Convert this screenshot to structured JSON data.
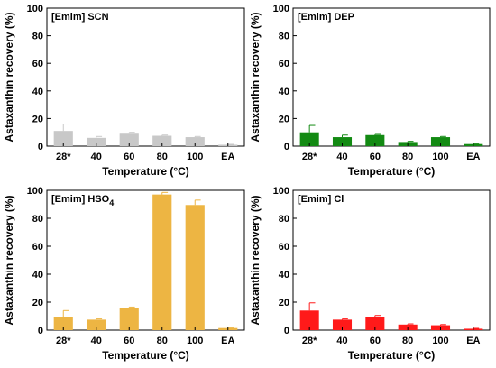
{
  "chart_data": [
    {
      "type": "bar",
      "panel_label": "[Emim] SCN",
      "panel_label_sub": "",
      "xlabel": "Temperature (°C)",
      "ylabel": "Astaxanthin recovery (%)",
      "categories": [
        "28*",
        "40",
        "60",
        "80",
        "100",
        "EA"
      ],
      "values": [
        11,
        6,
        9,
        7.5,
        6.5,
        1
      ],
      "errors": [
        5,
        1,
        1,
        0.5,
        0.5,
        0.3
      ],
      "ylim": [
        0,
        100
      ],
      "yticks": [
        0,
        20,
        40,
        60,
        80,
        100
      ],
      "color": "#c8c8c8"
    },
    {
      "type": "bar",
      "panel_label": "[Emim] DEP",
      "panel_label_sub": "",
      "xlabel": "Temperature (°C)",
      "ylabel": "Astaxanthin recovery (%)",
      "categories": [
        "28*",
        "40",
        "60",
        "80",
        "100",
        "EA"
      ],
      "values": [
        10,
        6.5,
        8,
        3,
        6.5,
        1.5
      ],
      "errors": [
        5,
        1.5,
        0.5,
        0.5,
        0.5,
        0.3
      ],
      "ylim": [
        0,
        100
      ],
      "yticks": [
        0,
        20,
        40,
        60,
        80,
        100
      ],
      "color": "#138a13"
    },
    {
      "type": "bar",
      "panel_label": "[Emim] HSO",
      "panel_label_sub": "4",
      "xlabel": "Temperature (°C)",
      "ylabel": "Astaxanthin recovery (%)",
      "categories": [
        "28*",
        "40",
        "60",
        "80",
        "100",
        "EA"
      ],
      "values": [
        9.5,
        7.5,
        16,
        97,
        89.5,
        1.5
      ],
      "errors": [
        4.5,
        0.5,
        0.5,
        1.5,
        3.5,
        0.3
      ],
      "ylim": [
        0,
        100
      ],
      "yticks": [
        0,
        20,
        40,
        60,
        80,
        100
      ],
      "color": "#edb543"
    },
    {
      "type": "bar",
      "panel_label": "[Emim] Cl",
      "panel_label_sub": "",
      "xlabel": "Temperature (°C)",
      "ylabel": "Astaxanthin recovery (%)",
      "categories": [
        "28*",
        "40",
        "60",
        "80",
        "100",
        "EA"
      ],
      "values": [
        14,
        7.5,
        9.5,
        4,
        3.5,
        1
      ],
      "errors": [
        5.5,
        0.5,
        1,
        0.5,
        0.5,
        0.3
      ],
      "ylim": [
        0,
        100
      ],
      "yticks": [
        0,
        20,
        40,
        60,
        80,
        100
      ],
      "color": "#ff1a1a"
    }
  ]
}
